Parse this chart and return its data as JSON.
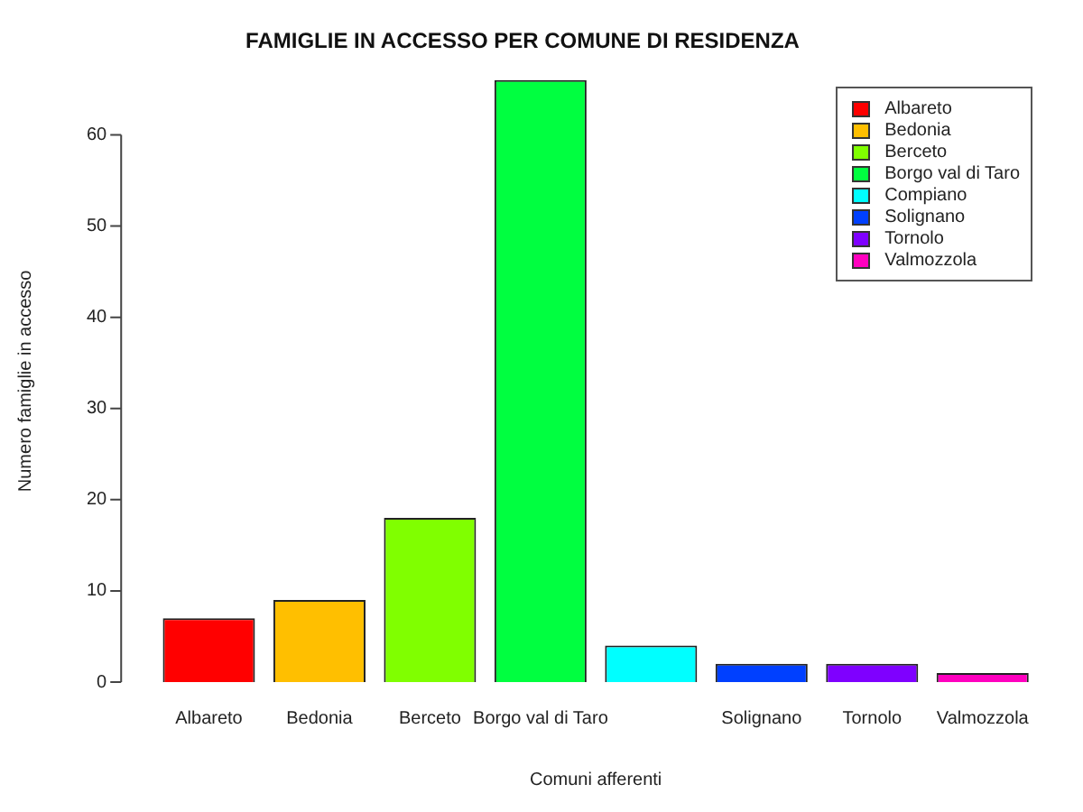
{
  "chart_data": {
    "type": "bar",
    "title": "FAMIGLIE IN ACCESSO PER COMUNE DI RESIDENZA",
    "xlabel": "Comuni afferenti",
    "ylabel": "Numero famiglie in accesso",
    "categories": [
      "Albareto",
      "Bedonia",
      "Berceto",
      "Borgo val di Taro",
      null,
      "Solignano",
      "Tornolo",
      "Valmozzola"
    ],
    "series": [
      {
        "name": "Albareto",
        "color": "#ff0000",
        "values": [
          7,
          null,
          null,
          null,
          null,
          null,
          null,
          null
        ]
      },
      {
        "name": "Bedonia",
        "color": "#ffbf00",
        "values": [
          null,
          9,
          null,
          null,
          null,
          null,
          null,
          null
        ]
      },
      {
        "name": "Berceto",
        "color": "#80ff00",
        "values": [
          null,
          null,
          18,
          null,
          null,
          null,
          null,
          null
        ]
      },
      {
        "name": "Borgo val di Taro",
        "color": "#00ff40",
        "values": [
          null,
          null,
          null,
          66,
          null,
          null,
          null,
          null
        ]
      },
      {
        "name": "Compiano",
        "color": "#00ffff",
        "values": [
          null,
          null,
          null,
          null,
          4,
          null,
          null,
          null
        ]
      },
      {
        "name": "Solignano",
        "color": "#0040ff",
        "values": [
          null,
          null,
          null,
          null,
          null,
          2,
          null,
          null
        ]
      },
      {
        "name": "Tornolo",
        "color": "#7f00ff",
        "values": [
          null,
          null,
          null,
          null,
          null,
          null,
          2,
          null
        ]
      },
      {
        "name": "Valmozzola",
        "color": "#ff00bf",
        "values": [
          null,
          null,
          null,
          null,
          null,
          null,
          null,
          1
        ]
      }
    ],
    "ylim": [
      0,
      66
    ],
    "yticks": [
      0,
      10,
      20,
      30,
      40,
      50,
      60
    ],
    "grid": false,
    "legend": "top right"
  }
}
